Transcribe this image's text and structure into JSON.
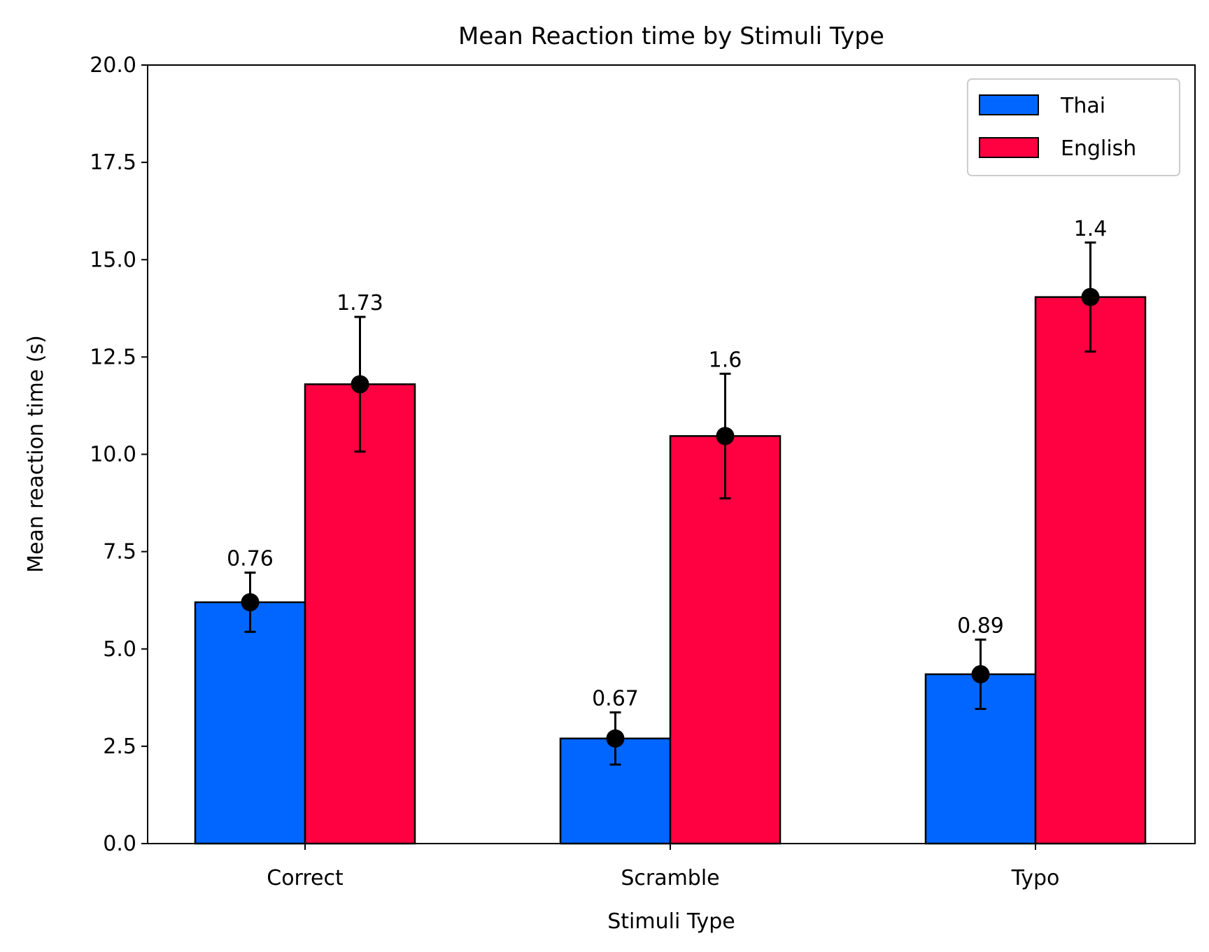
{
  "chart_data": {
    "type": "bar",
    "title": "Mean Reaction time by Stimuli Type",
    "xlabel": "Stimuli Type",
    "ylabel": "Mean reaction time (s)",
    "categories": [
      "Correct",
      "Scramble",
      "Typo"
    ],
    "ylim": [
      0,
      20
    ],
    "yticks": [
      "0.0",
      "2.5",
      "5.0",
      "7.5",
      "10.0",
      "12.5",
      "15.0",
      "17.5",
      "20.0"
    ],
    "grid": false,
    "legend_position": "top-right",
    "series": [
      {
        "name": "Thai",
        "color": "#0066ff",
        "values": [
          6.2,
          2.7,
          4.35
        ],
        "errors": [
          0.76,
          0.67,
          0.89
        ],
        "labels": [
          "0.76",
          "0.67",
          "0.89"
        ]
      },
      {
        "name": "English",
        "color": "#ff0040",
        "values": [
          11.8,
          10.47,
          14.04
        ],
        "errors": [
          1.73,
          1.6,
          1.4
        ],
        "labels": [
          "1.73",
          "1.6",
          "1.4"
        ]
      }
    ]
  }
}
